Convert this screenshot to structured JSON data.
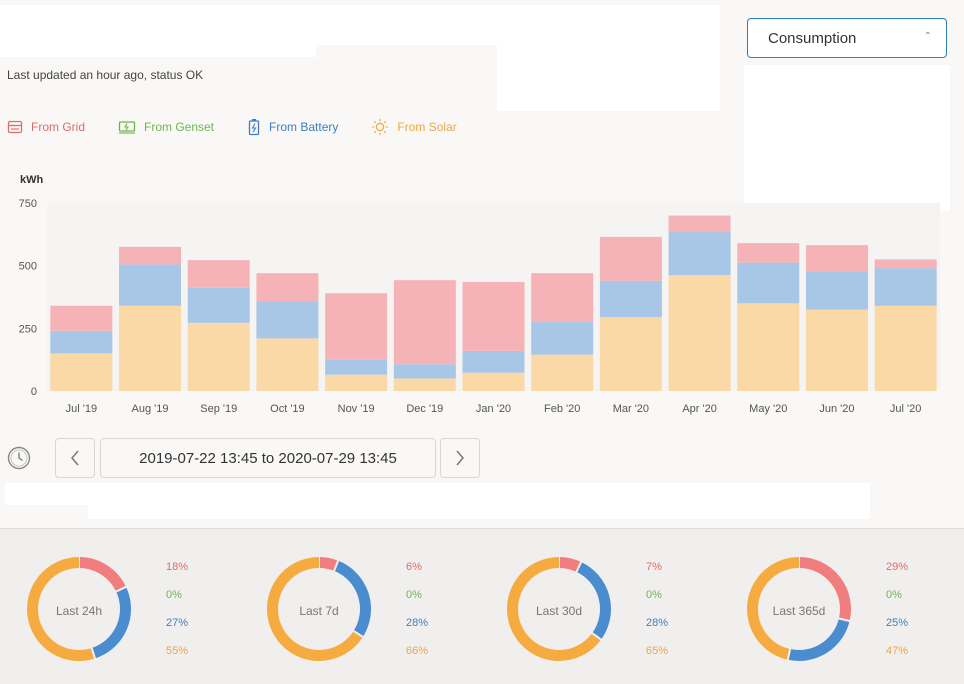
{
  "status_text": "Last updated an hour ago, status OK",
  "dropdown": {
    "selected": "Consumption"
  },
  "colors": {
    "grid": "#f5b3b7",
    "genset": "#8cc769",
    "battery": "#a8c6e6",
    "solar": "#fad9a7",
    "grid_text": "#e06b6b",
    "genset_text": "#6bb84a",
    "battery_text": "#3f7ec3",
    "solar_text": "#efa743",
    "donut_grid": "#f07e7e",
    "donut_battery": "#4a8cd0",
    "donut_solar": "#f5ab40",
    "donut_genset": "#8cc769"
  },
  "legend": [
    {
      "label": "From Grid",
      "icon": "grid-icon",
      "key": "grid"
    },
    {
      "label": "From Genset",
      "icon": "genset-icon",
      "key": "genset"
    },
    {
      "label": "From Battery",
      "icon": "battery-icon",
      "key": "battery"
    },
    {
      "label": "From Solar",
      "icon": "sun-icon",
      "key": "solar"
    }
  ],
  "chart_data": {
    "type": "bar",
    "stacked": true,
    "ylabel": "kWh",
    "ylim": [
      0,
      750
    ],
    "yticks": [
      0,
      250,
      500,
      750
    ],
    "categories": [
      "Jul '19",
      "Aug '19",
      "Sep '19",
      "Oct '19",
      "Nov '19",
      "Dec '19",
      "Jan '20",
      "Feb '20",
      "Mar '20",
      "Apr '20",
      "May '20",
      "Jun '20",
      "Jul '20"
    ],
    "series": [
      {
        "name": "From Solar",
        "key": "solar",
        "values": [
          150,
          340,
          272,
          210,
          65,
          50,
          73,
          145,
          295,
          462,
          350,
          325,
          340
        ]
      },
      {
        "name": "From Battery",
        "key": "battery",
        "values": [
          90,
          165,
          140,
          145,
          60,
          57,
          87,
          130,
          145,
          172,
          162,
          152,
          150
        ]
      },
      {
        "name": "From Genset",
        "key": "genset",
        "values": [
          0,
          0,
          0,
          0,
          0,
          0,
          0,
          0,
          0,
          0,
          0,
          0,
          0
        ]
      },
      {
        "name": "From Grid",
        "key": "grid",
        "values": [
          100,
          70,
          110,
          115,
          265,
          335,
          275,
          195,
          175,
          66,
          78,
          105,
          35
        ]
      }
    ],
    "grid": false
  },
  "date_range": "2019-07-22 13:45 to 2020-07-29 13:45",
  "summaries": [
    {
      "label": "Last 24h",
      "grid": 18,
      "genset": 0,
      "battery": 27,
      "solar": 55,
      "grid_text": "18%",
      "genset_text": "0%",
      "battery_text": "27%",
      "solar_text": "55%"
    },
    {
      "label": "Last 7d",
      "grid": 6,
      "genset": 0,
      "battery": 28,
      "solar": 66,
      "grid_text": "6%",
      "genset_text": "0%",
      "battery_text": "28%",
      "solar_text": "66%"
    },
    {
      "label": "Last 30d",
      "grid": 7,
      "genset": 0,
      "battery": 28,
      "solar": 65,
      "grid_text": "7%",
      "genset_text": "0%",
      "battery_text": "28%",
      "solar_text": "65%"
    },
    {
      "label": "Last 365d",
      "grid": 29,
      "genset": 0,
      "battery": 25,
      "solar": 47,
      "grid_text": "29%",
      "genset_text": "0%",
      "battery_text": "25%",
      "solar_text": "47%"
    }
  ]
}
